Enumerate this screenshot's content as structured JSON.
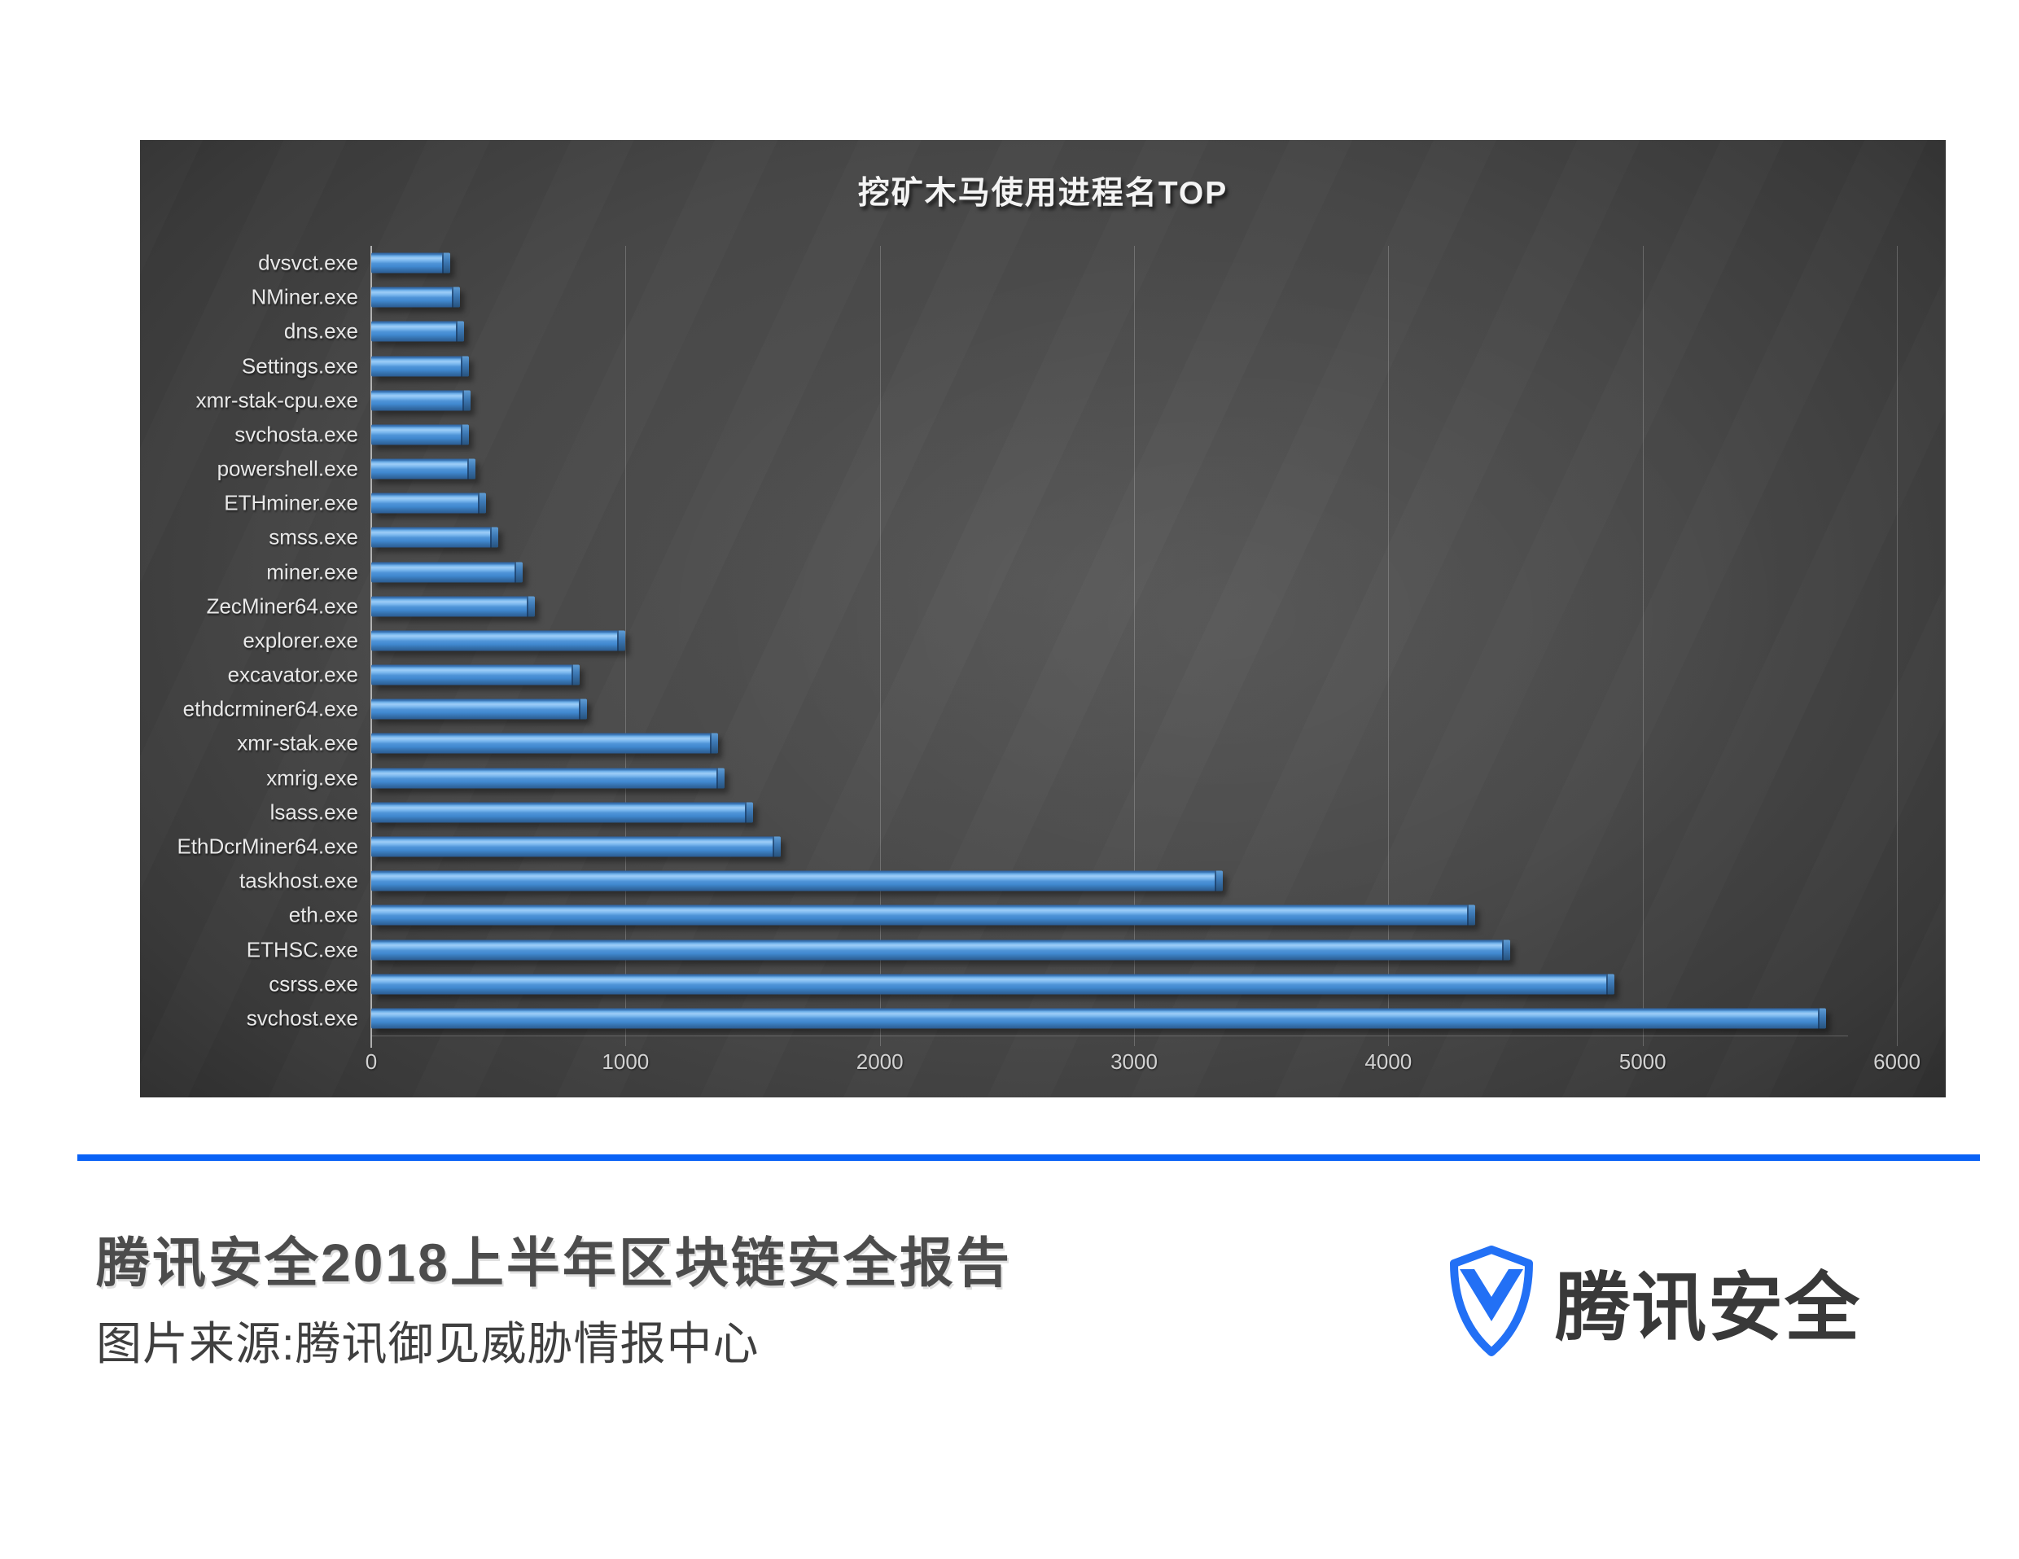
{
  "chart_data": {
    "type": "bar",
    "orientation": "horizontal",
    "title": "挖矿木马使用进程名TOP",
    "categories": [
      "dvsvct.exe",
      "NMiner.exe",
      "dns.exe",
      "Settings.exe",
      "xmr-stak-cpu.exe",
      "svchosta.exe",
      "powershell.exe",
      "ETHminer.exe",
      "smss.exe",
      "miner.exe",
      "ZecMiner64.exe",
      "explorer.exe",
      "excavator.exe",
      "ethdcrminer64.exe",
      "xmr-stak.exe",
      "xmrig.exe",
      "lsass.exe",
      "EthDcrMiner64.exe",
      "taskhost.exe",
      "eth.exe",
      "ETHSC.exe",
      "csrss.exe",
      "svchost.exe"
    ],
    "values": [
      310,
      350,
      365,
      385,
      390,
      385,
      410,
      450,
      500,
      595,
      645,
      1000,
      820,
      850,
      1365,
      1390,
      1500,
      1610,
      3350,
      4340,
      4480,
      4890,
      5720
    ],
    "xlim": [
      0,
      6000
    ],
    "x_ticks": [
      0,
      1000,
      2000,
      3000,
      4000,
      5000,
      6000
    ],
    "grid": true,
    "legend": "none",
    "bar_color": "#4a8fd3",
    "background": "#454545"
  },
  "footer": {
    "heading": "腾讯安全2018上半年区块链安全报告",
    "source": "图片来源:腾讯御见威胁情报中心",
    "divider_color": "#0a62f6"
  },
  "logo": {
    "text": "腾讯安全",
    "shield_color": "#2270f5",
    "icon": "shield-check-icon"
  }
}
